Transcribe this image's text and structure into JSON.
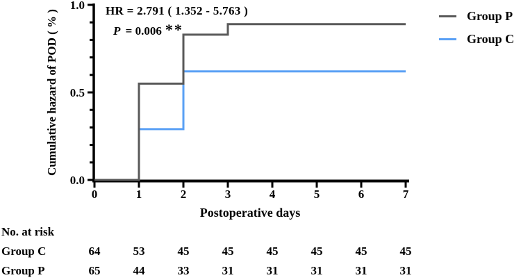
{
  "chart_data": {
    "type": "line",
    "subtype": "step",
    "title": "",
    "xlabel": "Postoperative days",
    "ylabel": "Cumulative hazard of POD ( % )",
    "xlim": [
      0,
      7
    ],
    "ylim": [
      0,
      1
    ],
    "xticks": [
      0,
      1,
      2,
      3,
      4,
      5,
      6,
      7
    ],
    "ytick_values": [
      0,
      0.5,
      1
    ],
    "ytick_labels": [
      "0.0",
      "0.5",
      "1.0"
    ],
    "y_minor_ticks": [
      0.1,
      0.2,
      0.3,
      0.4,
      0.6,
      0.7,
      0.8,
      0.9
    ],
    "grid": false,
    "legend_position": "top-right",
    "series": [
      {
        "name": "Group P",
        "color": "#595959",
        "points": [
          [
            0,
            0
          ],
          [
            1,
            0
          ],
          [
            1,
            0.55
          ],
          [
            2,
            0.55
          ],
          [
            2,
            0.83
          ],
          [
            3,
            0.83
          ],
          [
            3,
            0.89
          ],
          [
            7,
            0.89
          ]
        ]
      },
      {
        "name": "Group C",
        "color": "#5aa0f5",
        "points": [
          [
            0,
            0
          ],
          [
            1,
            0
          ],
          [
            1,
            0.29
          ],
          [
            2,
            0.29
          ],
          [
            2,
            0.62
          ],
          [
            7,
            0.62
          ]
        ]
      }
    ],
    "annotations": {
      "hr": "HR = 2.791 ( 1.352 - 5.763 )",
      "p_symbol": "P",
      "p_rest": " = 0.006",
      "stars": "**"
    }
  },
  "risk_table": {
    "title": "No. at risk",
    "rows": [
      {
        "label": "Group C",
        "counts": [
          "64",
          "53",
          "45",
          "45",
          "45",
          "45",
          "45",
          "45"
        ]
      },
      {
        "label": "Group P",
        "counts": [
          "65",
          "44",
          "33",
          "31",
          "31",
          "31",
          "31",
          "31"
        ]
      }
    ]
  }
}
